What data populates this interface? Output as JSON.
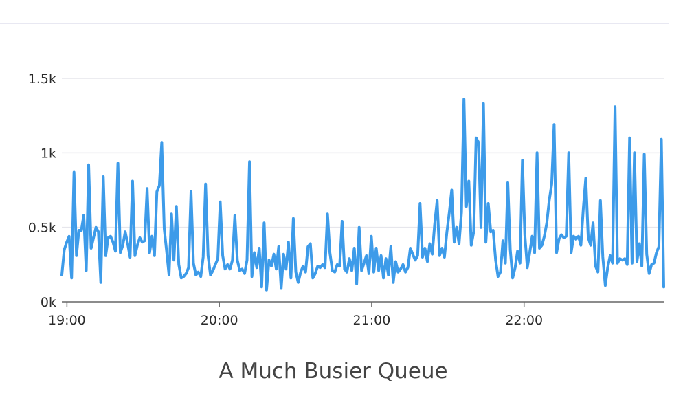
{
  "caption": "A Much Busier Queue",
  "colors": {
    "line": "#3d9be9",
    "grid": "#e6e6ec",
    "axis": "#666666",
    "rule": "#e8e8f2"
  },
  "chart_data": {
    "type": "line",
    "title": "",
    "caption": "A Much Busier Queue",
    "xlabel": "",
    "ylabel": "",
    "grid": true,
    "ylim": [
      0,
      1500
    ],
    "y_ticks": [
      0,
      500,
      1000,
      1500
    ],
    "y_tick_labels": [
      "0k",
      "0.5k",
      "1k",
      "1.5k"
    ],
    "x_range": [
      "18:58",
      "22:55"
    ],
    "x_ticks": [
      "19:00",
      "20:00",
      "21:00",
      "22:00"
    ],
    "series": [
      {
        "values": [
          180,
          350,
          400,
          440,
          160,
          870,
          310,
          480,
          480,
          580,
          210,
          920,
          360,
          430,
          500,
          470,
          130,
          840,
          310,
          430,
          440,
          400,
          340,
          930,
          330,
          380,
          470,
          390,
          300,
          810,
          310,
          380,
          430,
          400,
          410,
          760,
          330,
          440,
          310,
          740,
          780,
          1070,
          490,
          340,
          180,
          590,
          280,
          640,
          250,
          160,
          170,
          190,
          230,
          740,
          260,
          180,
          200,
          170,
          300,
          790,
          310,
          180,
          210,
          250,
          290,
          670,
          310,
          220,
          250,
          220,
          280,
          580,
          280,
          210,
          220,
          190,
          280,
          940,
          170,
          330,
          230,
          360,
          100,
          530,
          80,
          280,
          240,
          320,
          220,
          370,
          90,
          320,
          220,
          400,
          160,
          560,
          200,
          130,
          200,
          240,
          200,
          370,
          390,
          160,
          190,
          240,
          230,
          250,
          230,
          590,
          330,
          210,
          200,
          250,
          240,
          540,
          220,
          200,
          290,
          210,
          360,
          120,
          500,
          210,
          260,
          310,
          190,
          440,
          200,
          360,
          210,
          310,
          160,
          290,
          180,
          370,
          130,
          270,
          200,
          220,
          250,
          200,
          230,
          360,
          320,
          280,
          310,
          660,
          300,
          360,
          270,
          390,
          320,
          520,
          680,
          310,
          360,
          300,
          470,
          600,
          750,
          400,
          500,
          390,
          600,
          1360,
          640,
          810,
          380,
          470,
          1100,
          1070,
          500,
          1330,
          400,
          660,
          470,
          480,
          280,
          170,
          200,
          410,
          260,
          800,
          350,
          160,
          230,
          340,
          260,
          950,
          450,
          230,
          330,
          440,
          330,
          1000,
          360,
          380,
          440,
          530,
          680,
          790,
          1190,
          330,
          420,
          450,
          430,
          440,
          1000,
          330,
          440,
          420,
          440,
          380,
          630,
          830,
          430,
          380,
          530,
          240,
          200,
          680,
          300,
          110,
          230,
          310,
          260,
          1310,
          260,
          290,
          280,
          290,
          250,
          1100,
          260,
          1000,
          270,
          390,
          240,
          990,
          320,
          190,
          250,
          260,
          330,
          370,
          1090,
          100
        ]
      }
    ]
  }
}
